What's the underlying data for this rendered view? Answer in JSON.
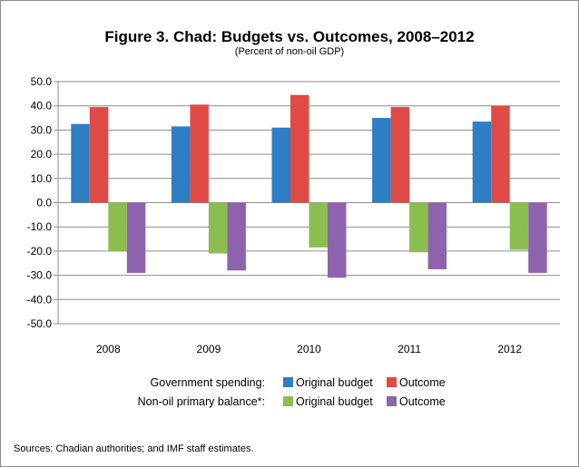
{
  "chart_data": {
    "type": "bar",
    "title": "Figure 3. Chad: Budgets vs. Outcomes, 2008–2012",
    "subtitle": "(Percent of non-oil GDP)",
    "categories": [
      "2008",
      "2009",
      "2010",
      "2011",
      "2012"
    ],
    "ylim": [
      -50,
      50
    ],
    "yticks": [
      "50.0",
      "40.0",
      "30.0",
      "20.0",
      "10.0",
      "0.0",
      "-10.0",
      "-20.0",
      "-30.0",
      "-40.0",
      "-50.0"
    ],
    "ytick_values": [
      50,
      40,
      30,
      20,
      10,
      0,
      -10,
      -20,
      -30,
      -40,
      -50
    ],
    "grid": true,
    "series": [
      {
        "group": "Government spending",
        "name": "Original budget",
        "color": "#2E7EC4",
        "values": [
          32.5,
          31.5,
          31.0,
          35.0,
          33.5
        ]
      },
      {
        "group": "Government spending",
        "name": "Outcome",
        "color": "#E04A46",
        "values": [
          39.5,
          40.5,
          44.5,
          39.5,
          40.0
        ]
      },
      {
        "group": "Non-oil primary balance*",
        "name": "Original budget",
        "color": "#8CBE4F",
        "values": [
          -20.0,
          -21.0,
          -18.5,
          -20.5,
          -19.5
        ]
      },
      {
        "group": "Non-oil primary balance*",
        "name": "Outcome",
        "color": "#8E63AE",
        "values": [
          -29.0,
          -28.0,
          -31.0,
          -27.5,
          -29.0
        ]
      }
    ],
    "legend": {
      "placement": "bottom",
      "rows": [
        {
          "label": "Government spending:",
          "items": [
            "Original budget",
            "Outcome"
          ]
        },
        {
          "label": "Non-oil primary balance*:",
          "items": [
            "Original budget",
            "Outcome"
          ]
        }
      ]
    },
    "source": "Sources: Chadian authorities; and IMF staff estimates."
  }
}
